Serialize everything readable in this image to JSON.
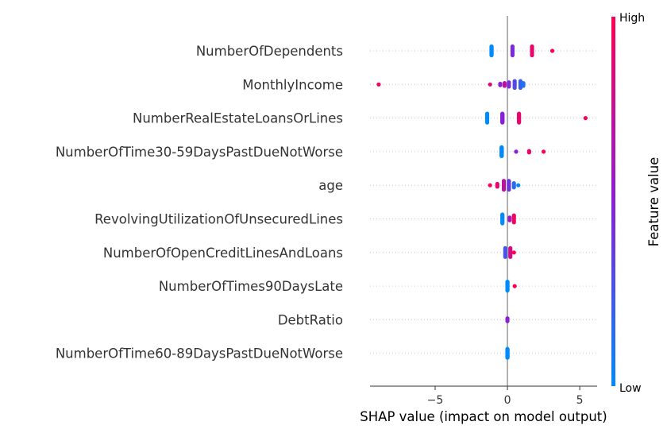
{
  "chart_data": {
    "type": "scatter",
    "subtype": "shap-beeswarm",
    "xlabel": "SHAP value (impact on model output)",
    "xticks": [
      -5,
      0,
      5
    ],
    "xlim": [
      -9.5,
      6.2
    ],
    "grid": false,
    "colors": {
      "low": "#008bfb",
      "mid": "#8a20d5",
      "high": "#ff0052",
      "zero_line": "#999999",
      "row_line": "#cccccc"
    },
    "colorbar": {
      "title": "Feature value",
      "high_label": "High",
      "low_label": "Low"
    },
    "features": [
      {
        "name": "NumberOfDependents",
        "points": [
          {
            "x": -1.1,
            "v": 0.0,
            "n": 30
          },
          {
            "x": 0.35,
            "v": 0.45,
            "n": 8
          },
          {
            "x": 1.7,
            "v": 0.9,
            "n": 10
          },
          {
            "x": 3.1,
            "v": 1.0,
            "n": 1
          }
        ]
      },
      {
        "name": "MonthlyIncome",
        "points": [
          {
            "x": -8.9,
            "v": 0.95,
            "n": 1
          },
          {
            "x": -1.2,
            "v": 0.85,
            "n": 1
          },
          {
            "x": -0.5,
            "v": 0.5,
            "n": 2
          },
          {
            "x": -0.2,
            "v": 0.7,
            "n": 3
          },
          {
            "x": 0.1,
            "v": 0.45,
            "n": 4
          },
          {
            "x": 0.5,
            "v": 0.3,
            "n": 6
          },
          {
            "x": 0.9,
            "v": 0.2,
            "n": 6
          },
          {
            "x": 1.1,
            "v": 0.1,
            "n": 3
          }
        ]
      },
      {
        "name": "NumberRealEstateLoansOrLines",
        "points": [
          {
            "x": -1.4,
            "v": 0.0,
            "n": 10
          },
          {
            "x": -0.35,
            "v": 0.5,
            "n": 24
          },
          {
            "x": 0.8,
            "v": 0.9,
            "n": 12
          },
          {
            "x": 5.4,
            "v": 1.0,
            "n": 1
          }
        ]
      },
      {
        "name": "NumberOfTime30-59DaysPastDueNotWorse",
        "points": [
          {
            "x": -0.4,
            "v": 0.0,
            "n": 30
          },
          {
            "x": 0.6,
            "v": 0.5,
            "n": 1
          },
          {
            "x": 1.5,
            "v": 0.9,
            "n": 2
          },
          {
            "x": 2.5,
            "v": 1.0,
            "n": 1
          }
        ]
      },
      {
        "name": "age",
        "points": [
          {
            "x": -1.2,
            "v": 1.0,
            "n": 1
          },
          {
            "x": -0.7,
            "v": 0.9,
            "n": 3
          },
          {
            "x": -0.25,
            "v": 0.7,
            "n": 8
          },
          {
            "x": 0.1,
            "v": 0.4,
            "n": 10
          },
          {
            "x": 0.45,
            "v": 0.15,
            "n": 4
          },
          {
            "x": 0.75,
            "v": 0.0,
            "n": 1
          }
        ]
      },
      {
        "name": "RevolvingUtilizationOfUnsecuredLines",
        "points": [
          {
            "x": -0.35,
            "v": 0.0,
            "n": 12
          },
          {
            "x": 0.15,
            "v": 0.6,
            "n": 3
          },
          {
            "x": 0.45,
            "v": 0.95,
            "n": 6
          }
        ]
      },
      {
        "name": "NumberOfOpenCreditLinesAndLoans",
        "points": [
          {
            "x": -0.15,
            "v": 0.25,
            "n": 8
          },
          {
            "x": 0.2,
            "v": 0.8,
            "n": 8
          },
          {
            "x": 0.45,
            "v": 1.0,
            "n": 1
          }
        ]
      },
      {
        "name": "NumberOfTimes90DaysLate",
        "points": [
          {
            "x": 0.0,
            "v": 0.0,
            "n": 22
          },
          {
            "x": 0.5,
            "v": 1.0,
            "n": 1
          }
        ]
      },
      {
        "name": "DebtRatio",
        "points": [
          {
            "x": 0.0,
            "v": 0.5,
            "n": 3
          }
        ]
      },
      {
        "name": "NumberOfTime60-89DaysPastDueNotWorse",
        "points": [
          {
            "x": 0.0,
            "v": 0.0,
            "n": 30
          }
        ]
      }
    ]
  }
}
